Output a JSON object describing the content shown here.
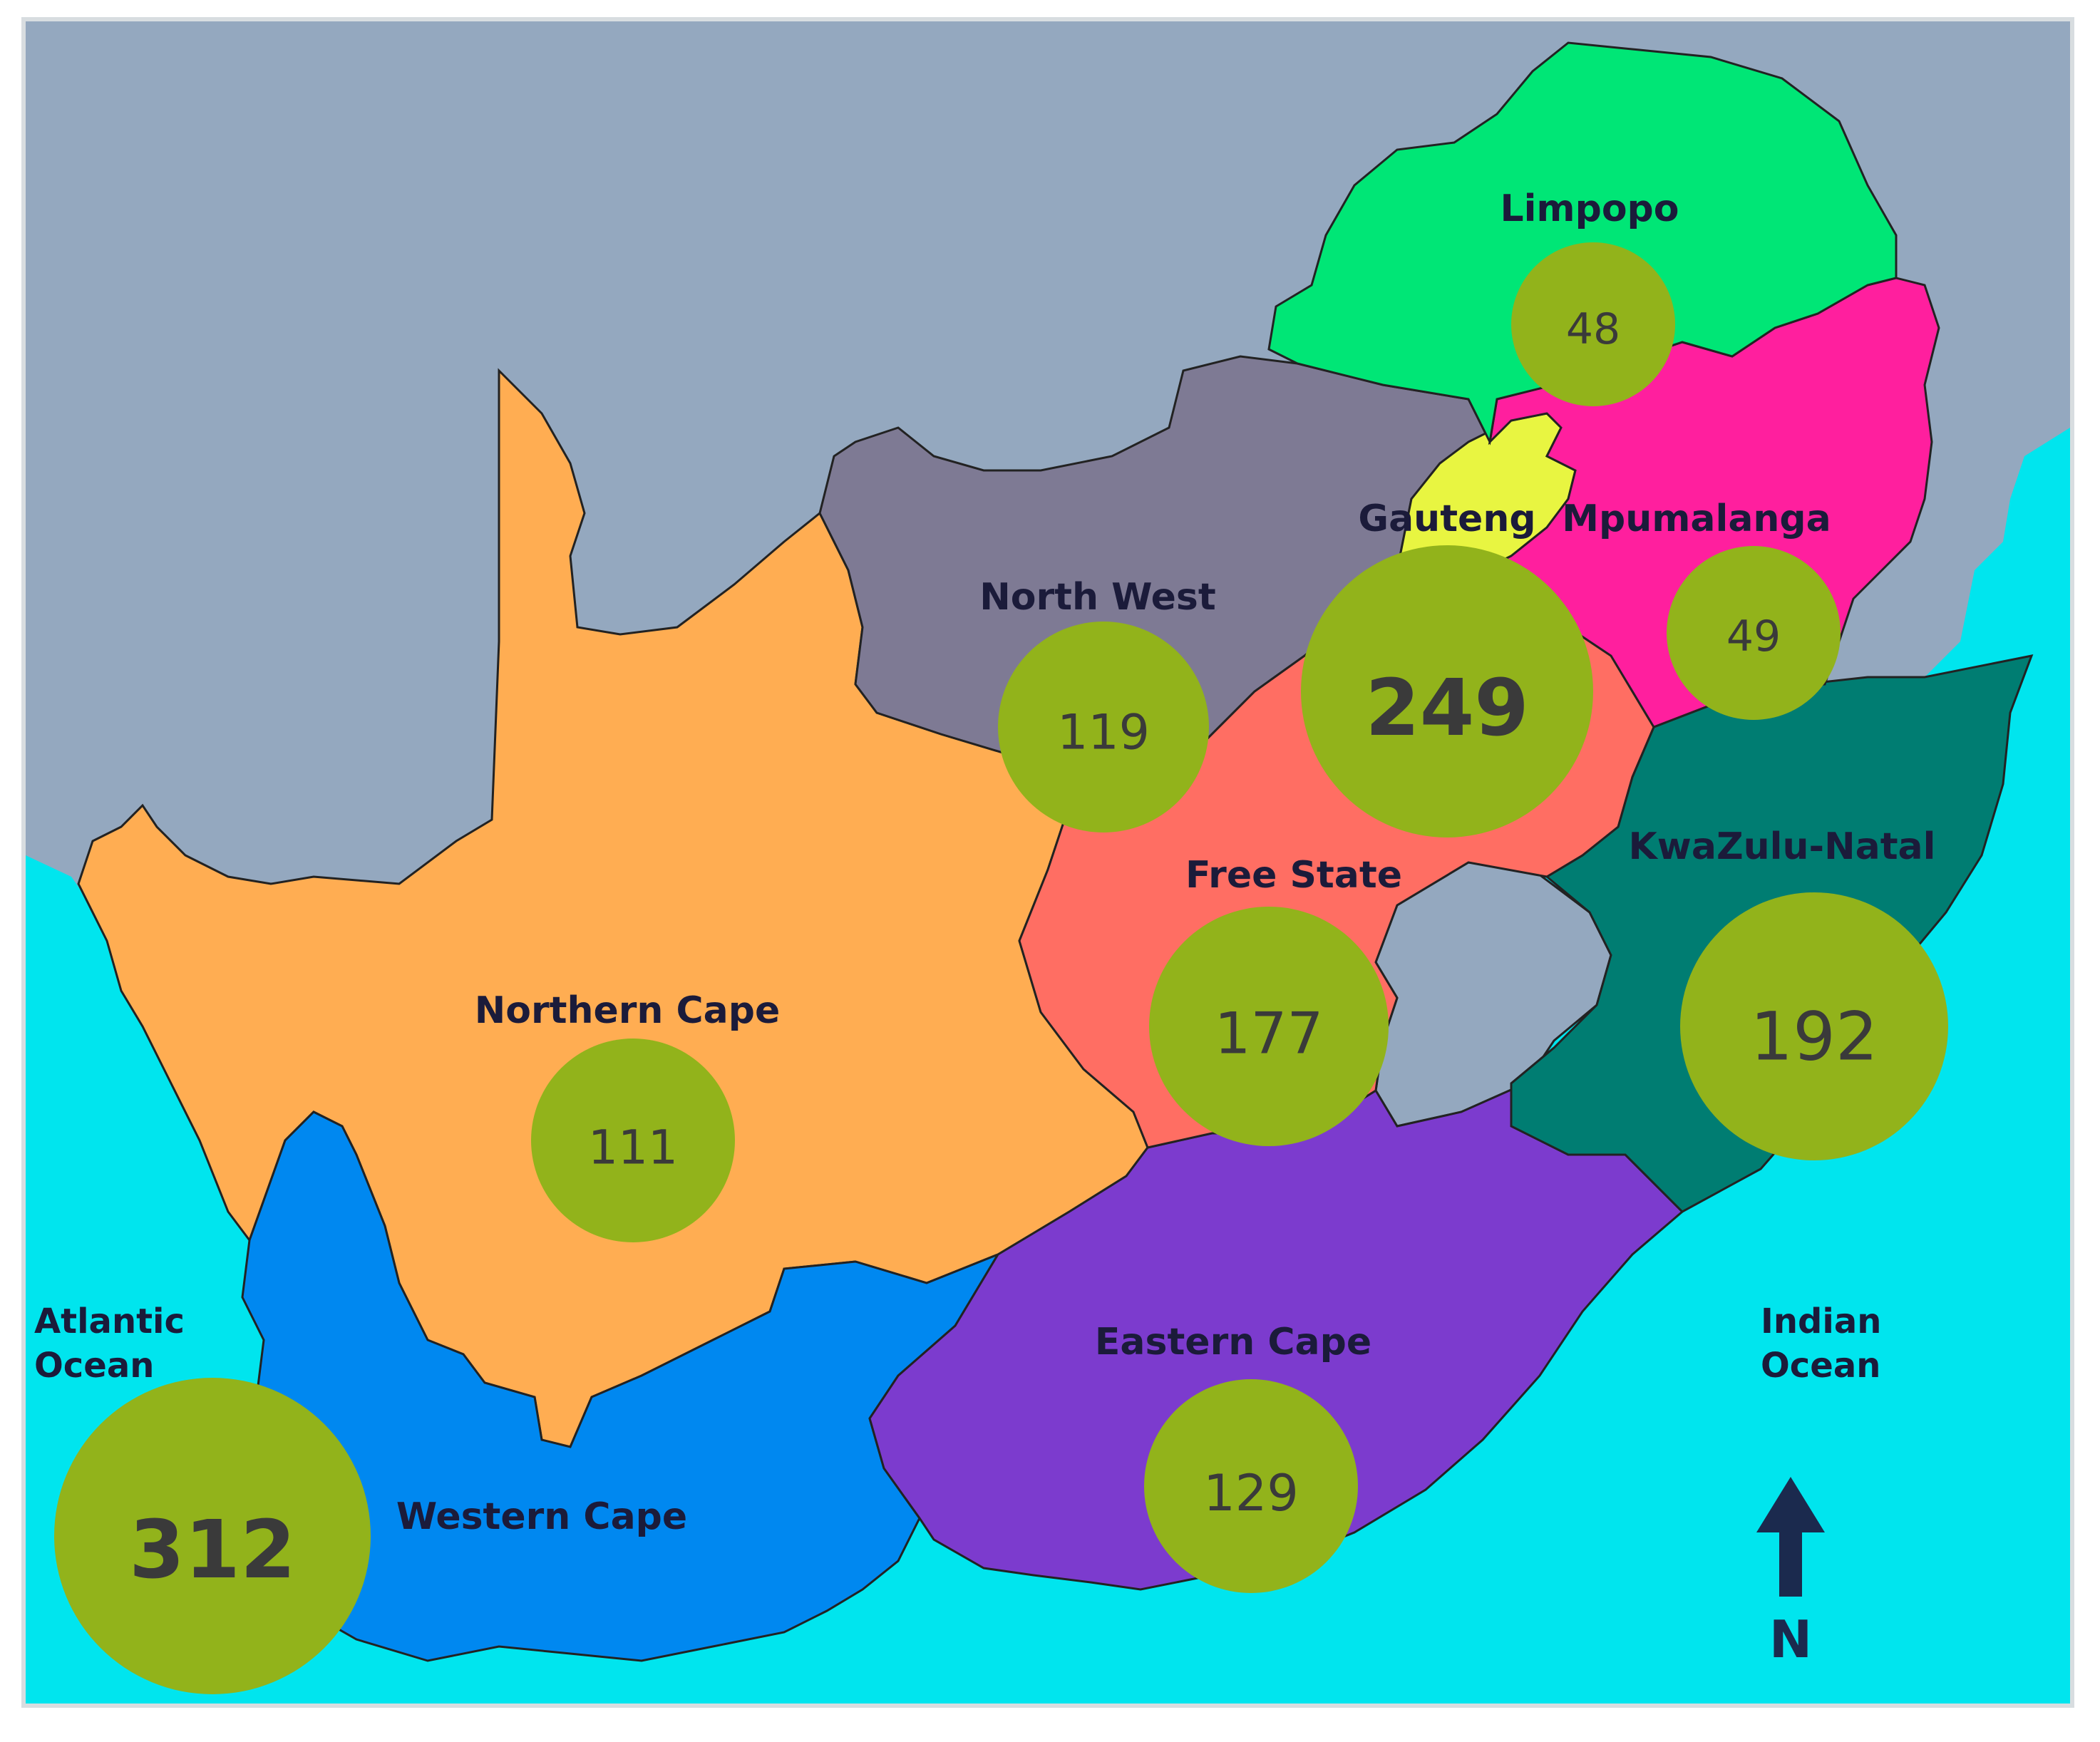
{
  "colors": {
    "ocean": "#00e5ee",
    "land_other": "#94a8bf",
    "bubble": "#92b31b",
    "border": "#222222",
    "text": "#1b1b3a",
    "north_arrow": "#1b2a4e"
  },
  "provinces": [
    {
      "id": "limpopo",
      "name": "Limpopo",
      "count": "48",
      "color": "#00e676"
    },
    {
      "id": "mpumalanga",
      "name": "Mpumalanga",
      "count": "49",
      "color": "#ff1f9e"
    },
    {
      "id": "gauteng",
      "name": "Gauteng",
      "count": "249",
      "color": "#e8f541"
    },
    {
      "id": "north-west",
      "name": "North West",
      "count": "119",
      "color": "#7e7a94"
    },
    {
      "id": "free-state",
      "name": "Free State",
      "count": "177",
      "color": "#ff6e63"
    },
    {
      "id": "kwazulu-natal",
      "name": "KwaZulu-Natal",
      "count": "192",
      "color": "#007d72"
    },
    {
      "id": "northern-cape",
      "name": "Northern Cape",
      "count": "111",
      "color": "#ffad52"
    },
    {
      "id": "western-cape",
      "name": "Western Cape",
      "count": "312",
      "color": "#0088f0"
    },
    {
      "id": "eastern-cape",
      "name": "Eastern Cape",
      "count": "129",
      "color": "#7c3bce"
    }
  ],
  "oceans": {
    "atlantic": [
      "Atlantic",
      "Ocean"
    ],
    "indian": [
      "Indian",
      "Ocean"
    ]
  },
  "north_label": "N"
}
